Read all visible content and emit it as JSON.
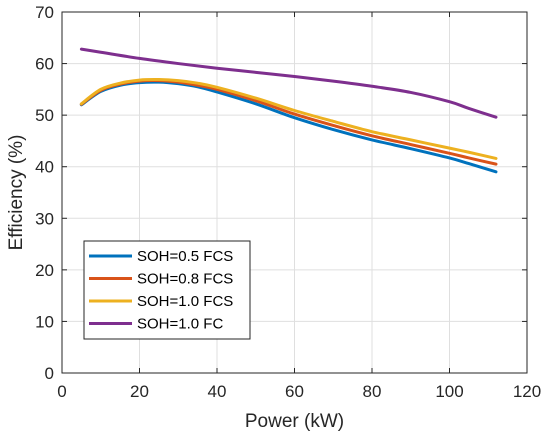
{
  "chart_data": {
    "type": "line",
    "title": "",
    "xlabel": "Power (kW)",
    "ylabel": "Efficiency (%)",
    "xlim": [
      0,
      120
    ],
    "ylim": [
      0,
      70
    ],
    "xticks": [
      0,
      20,
      40,
      60,
      80,
      100,
      120
    ],
    "yticks": [
      0,
      10,
      20,
      30,
      40,
      50,
      60,
      70
    ],
    "grid": true,
    "legend_position": "bottom-left",
    "series": [
      {
        "name": "SOH=0.5 FCS",
        "color": "#0072BD",
        "x": [
          5,
          10,
          15,
          20,
          25,
          30,
          35,
          40,
          50,
          60,
          70,
          80,
          90,
          100,
          105,
          112
        ],
        "y": [
          52.0,
          54.6,
          55.8,
          56.3,
          56.4,
          56.1,
          55.5,
          54.5,
          52.2,
          49.5,
          47.2,
          45.2,
          43.5,
          41.7,
          40.6,
          39.0
        ]
      },
      {
        "name": "SOH=0.8 FCS",
        "color": "#D95319",
        "x": [
          5,
          10,
          15,
          20,
          25,
          30,
          35,
          40,
          50,
          60,
          70,
          80,
          90,
          100,
          105,
          112
        ],
        "y": [
          52.1,
          54.8,
          56.0,
          56.6,
          56.7,
          56.4,
          55.8,
          55.0,
          52.8,
          50.2,
          48.0,
          46.0,
          44.3,
          42.6,
          41.7,
          40.5
        ]
      },
      {
        "name": "SOH=1.0 FCS",
        "color": "#EDB120",
        "x": [
          5,
          10,
          15,
          20,
          25,
          30,
          35,
          40,
          50,
          60,
          70,
          80,
          90,
          100,
          105,
          112
        ],
        "y": [
          52.2,
          55.0,
          56.2,
          56.8,
          56.9,
          56.7,
          56.2,
          55.4,
          53.3,
          50.9,
          48.8,
          46.8,
          45.2,
          43.6,
          42.8,
          41.6
        ]
      },
      {
        "name": "SOH=1.0 FC",
        "color": "#7E2F8E",
        "x": [
          5,
          10,
          20,
          30,
          40,
          50,
          60,
          70,
          80,
          90,
          100,
          105,
          112
        ],
        "y": [
          62.8,
          62.2,
          61.0,
          60.0,
          59.1,
          58.3,
          57.5,
          56.6,
          55.6,
          54.4,
          52.6,
          51.3,
          49.6
        ]
      }
    ]
  }
}
